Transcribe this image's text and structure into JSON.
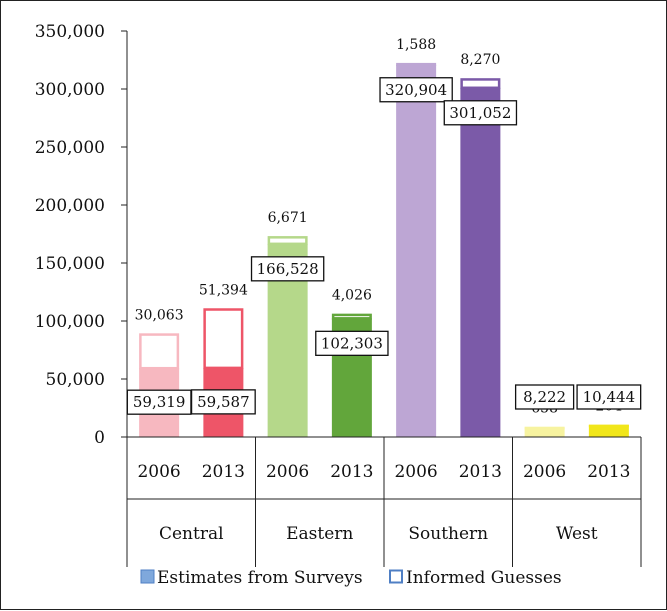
{
  "chart_data": {
    "type": "bar",
    "stacked": true,
    "groups": [
      "Central",
      "Eastern",
      "Southern",
      "West"
    ],
    "years": [
      "2006",
      "2013"
    ],
    "ylim": [
      0,
      350000
    ],
    "yticks": [
      "0",
      "50,000",
      "100,000",
      "150,000",
      "200,000",
      "250,000",
      "300,000",
      "350,000"
    ],
    "ytick_values": [
      0,
      50000,
      100000,
      150000,
      200000,
      250000,
      300000,
      350000
    ],
    "legend_position": "bottom",
    "series": [
      {
        "name": "Estimates from Surveys",
        "legend_marker": "filled"
      },
      {
        "name": "Informed Guesses",
        "legend_marker": "outline"
      }
    ],
    "bars": [
      {
        "group": "Central",
        "year": "2006",
        "surveys": 59319,
        "guesses": 30063,
        "surveys_label": "59,319",
        "guesses_label": "30,063",
        "fill": "#f7b8c0",
        "outline": "#f7b8c0"
      },
      {
        "group": "Central",
        "year": "2013",
        "surveys": 59587,
        "guesses": 51394,
        "surveys_label": "59,587",
        "guesses_label": "51,394",
        "fill": "#ee5568",
        "outline": "#ee5568"
      },
      {
        "group": "Eastern",
        "year": "2006",
        "surveys": 166528,
        "guesses": 6671,
        "surveys_label": "166,528",
        "guesses_label": "6,671",
        "fill": "#b5d88a",
        "outline": "#b5d88a"
      },
      {
        "group": "Eastern",
        "year": "2013",
        "surveys": 102303,
        "guesses": 4026,
        "surveys_label": "102,303",
        "guesses_label": "4,026",
        "fill": "#62a63b",
        "outline": "#62a63b"
      },
      {
        "group": "Southern",
        "year": "2006",
        "surveys": 320904,
        "guesses": 1588,
        "surveys_label": "320,904",
        "guesses_label": "1,588",
        "fill": "#bda6d4",
        "outline": "#bda6d4"
      },
      {
        "group": "Southern",
        "year": "2013",
        "surveys": 301052,
        "guesses": 8270,
        "surveys_label": "301,052",
        "guesses_label": "8,270",
        "fill": "#7b5aa8",
        "outline": "#7b5aa8"
      },
      {
        "group": "West",
        "year": "2006",
        "surveys": 8222,
        "guesses": 658,
        "surveys_label": "8,222",
        "guesses_label": "658",
        "fill": "#f7f3a0",
        "outline": "#f7f3a0"
      },
      {
        "group": "West",
        "year": "2013",
        "surveys": 10444,
        "guesses": 204,
        "surveys_label": "10,444",
        "guesses_label": "204",
        "fill": "#f1e61a",
        "outline": "#f1e61a"
      }
    ],
    "colors": {
      "legend_filled": "#7fa8dc",
      "legend_outline": "#4f7fc4",
      "axis": "#222222"
    }
  }
}
